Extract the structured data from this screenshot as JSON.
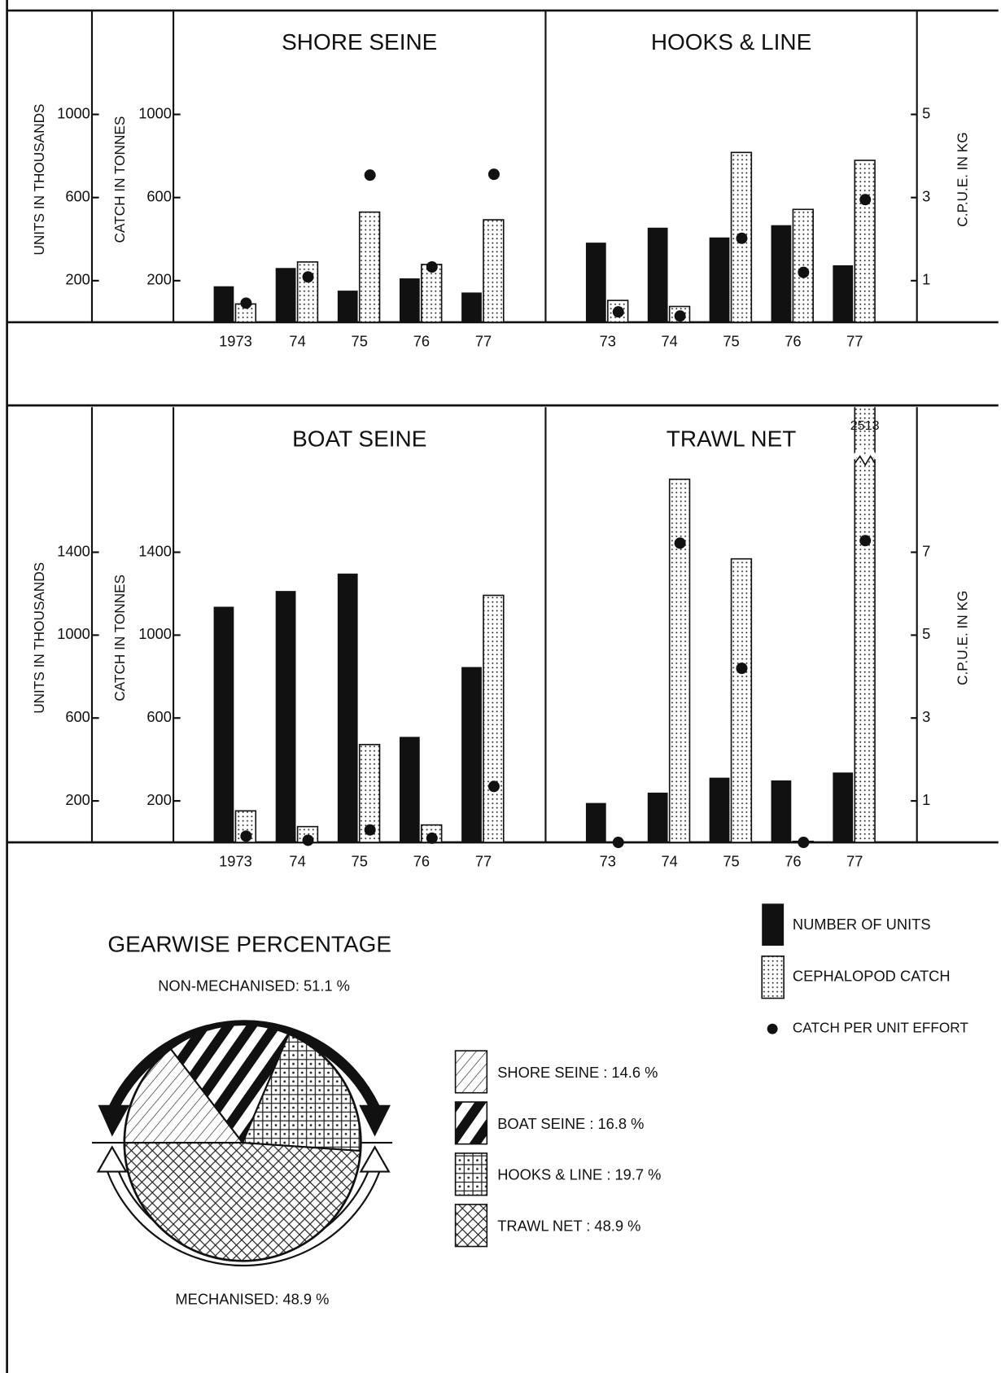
{
  "chart_data": [
    {
      "type": "bar",
      "title": "SHORE SEINE",
      "ylabel": "UNITS IN THOUSANDS",
      "ylabel_catch": "CATCH IN TONNES",
      "categories": [
        "1973",
        "74",
        "75",
        "76",
        "77"
      ],
      "ylim": [
        0,
        1500
      ],
      "yticks": [
        200,
        600,
        1000
      ],
      "y2lim": [
        0,
        7.5
      ],
      "series": [
        {
          "name": "NUMBER OF UNITS",
          "color": "#111111",
          "values": [
            173,
            261,
            152,
            211,
            143
          ]
        },
        {
          "name": "CEPHALOPOD CATCH",
          "pattern": "dots",
          "values": [
            88,
            290,
            530,
            278,
            493
          ]
        },
        {
          "name": "CATCH PER UNIT EFFORT",
          "color": "#111111",
          "axis": "y2",
          "values": [
            0.46,
            1.09,
            3.54,
            1.33,
            3.56
          ]
        }
      ]
    },
    {
      "type": "bar",
      "title": "HOOKS & LINE",
      "y2label": "C.P.U.E. IN KG",
      "categories": [
        "73",
        "74",
        "75",
        "76",
        "77"
      ],
      "ylim": [
        0,
        1500
      ],
      "y2lim": [
        0,
        7.5
      ],
      "y2ticks": [
        1,
        3,
        5
      ],
      "series": [
        {
          "name": "NUMBER OF UNITS",
          "color": "#111111",
          "values": [
            383,
            455,
            408,
            467,
            274
          ]
        },
        {
          "name": "CEPHALOPOD CATCH",
          "pattern": "dots",
          "values": [
            105,
            76,
            817,
            543,
            779
          ]
        },
        {
          "name": "CATCH PER UNIT EFFORT",
          "color": "#111111",
          "axis": "y2",
          "values": [
            0.25,
            0.15,
            2.02,
            1.2,
            2.95
          ]
        }
      ]
    },
    {
      "type": "bar",
      "title": "BOAT SEINE",
      "ylabel": "UNITS IN THOUSANDS",
      "ylabel_catch": "CATCH IN TONNES",
      "categories": [
        "1973",
        "74",
        "75",
        "76",
        "77"
      ],
      "ylim": [
        0,
        2100
      ],
      "yticks": [
        200,
        600,
        1000,
        1400
      ],
      "y2lim": [
        0,
        10.5
      ],
      "series": [
        {
          "name": "NUMBER OF UNITS",
          "color": "#111111",
          "values": [
            1137,
            1213,
            1297,
            509,
            846
          ]
        },
        {
          "name": "CEPHALOPOD CATCH",
          "pattern": "dots",
          "values": [
            152,
            76,
            472,
            84,
            1192
          ]
        },
        {
          "name": "CATCH PER UNIT EFFORT",
          "color": "#111111",
          "axis": "y2",
          "values": [
            0.15,
            0.05,
            0.3,
            0.1,
            1.35
          ]
        }
      ]
    },
    {
      "type": "bar",
      "title": "TRAWL NET",
      "y2label": "C.P.U.E. IN KG",
      "categories": [
        "73",
        "74",
        "75",
        "76",
        "77"
      ],
      "ylim": [
        0,
        2100
      ],
      "y2lim": [
        0,
        10.5
      ],
      "y2ticks": [
        1,
        3,
        5,
        7
      ],
      "series": [
        {
          "name": "NUMBER OF UNITS",
          "color": "#111111",
          "values": [
            190,
            240,
            312,
            299,
            337
          ]
        },
        {
          "name": "CEPHALOPOD CATCH",
          "pattern": "dots",
          "values": [
            0,
            1752,
            1368,
            5,
            2513
          ],
          "value_labels": [
            null,
            null,
            null,
            null,
            "2513"
          ]
        },
        {
          "name": "CATCH PER UNIT EFFORT",
          "color": "#111111",
          "axis": "y2",
          "values": [
            0,
            7.22,
            4.2,
            0,
            7.28
          ]
        }
      ]
    },
    {
      "type": "pie",
      "title": "GEARWISE PERCENTAGE",
      "annotations": [
        "NON-MECHANISED: 51.1 %",
        "MECHANISED: 48.9 %"
      ],
      "labels": [
        "SHORE SEINE : 14.6 %",
        "BOAT SEINE : 16.8 %",
        "HOOKS & LINE : 19.7 %",
        "TRAWL NET : 48.9 %"
      ],
      "values": [
        14.6,
        16.8,
        19.7,
        48.9
      ],
      "patterns": [
        "hatch",
        "stripes",
        "grid",
        "crosshatch"
      ]
    }
  ]
}
